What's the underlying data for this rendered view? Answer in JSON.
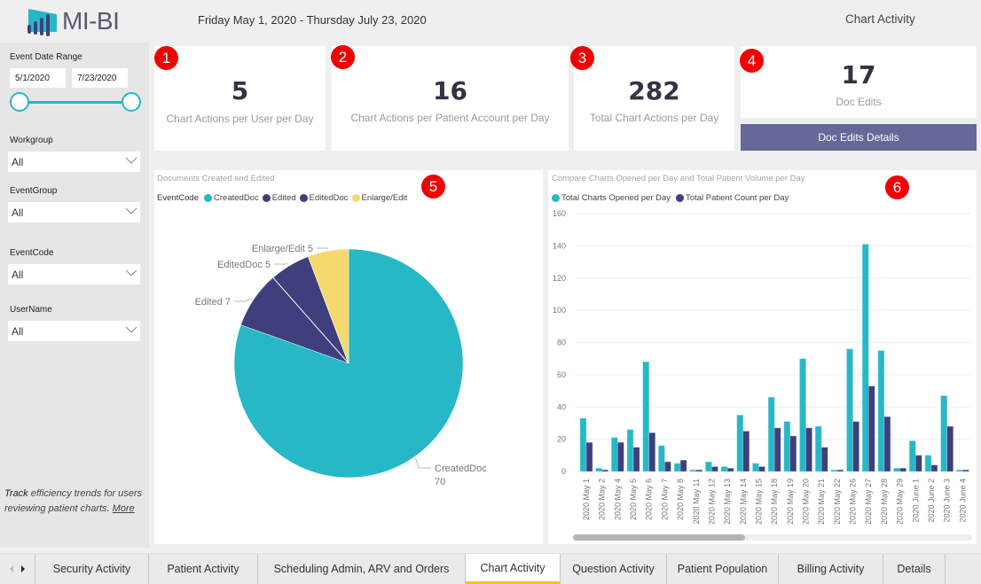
{
  "header": {
    "logo_text": "MI-BI",
    "date_range": "Friday May 1, 2020 - Thursday July 23, 2020",
    "page_name": "Chart Activity"
  },
  "sidebar": {
    "date_range_label": "Event Date Range",
    "start_date": "5/1/2020",
    "end_date": "7/23/2020",
    "filters": [
      {
        "label": "Workgroup",
        "value": "All"
      },
      {
        "label": "EventGroup",
        "value": "All"
      },
      {
        "label": "EventCode",
        "value": "All"
      },
      {
        "label": "UserName",
        "value": "All"
      }
    ],
    "description_lead": "Track",
    "description_rest": " efficiency trends for users reviewing patient charts. ",
    "more_link": "More"
  },
  "kpis": [
    {
      "badge": "1",
      "value": "5",
      "label": "Chart Actions per User per Day"
    },
    {
      "badge": "2",
      "value": "16",
      "label": "Chart Actions per Patient Account per Day"
    },
    {
      "badge": "3",
      "value": "282",
      "label": "Total Chart Actions per Day"
    },
    {
      "badge": "4",
      "value": "17",
      "label": "Doc Edits"
    }
  ],
  "doc_edits_button": "Doc Edits Details",
  "badges": {
    "pie": "5",
    "bar": "6"
  },
  "colors": {
    "teal": "#26b8c6",
    "navy": "#3e3f7c",
    "yellow": "#f5d86e",
    "button": "#666898",
    "badge": "#f00000"
  },
  "chart_data": [
    {
      "type": "pie",
      "title": "Documents Created and Edited",
      "legend_title": "EventCode",
      "legend_position": "top-left",
      "slices": [
        {
          "label": "CreatedDoc",
          "value": 70,
          "color": "#26b8c6"
        },
        {
          "label": "Edited",
          "value": 7,
          "color": "#3e3f7c"
        },
        {
          "label": "EditedDoc",
          "value": 5,
          "color": "#3e3f7c"
        },
        {
          "label": "Enlarge/Edit",
          "value": 5,
          "color": "#f5d86e"
        }
      ]
    },
    {
      "type": "bar",
      "title": "Compare Charts Opened per Day and Total Patient Volume per Day",
      "legend_position": "top-left",
      "ylim": [
        0,
        160
      ],
      "yticks": [
        0,
        20,
        40,
        60,
        80,
        100,
        120,
        140,
        160
      ],
      "grid": true,
      "categories": [
        "2020 May 1",
        "2020 May 2",
        "2020 May 4",
        "2020 May 5",
        "2020 May 6",
        "2020 May 7",
        "2020 May 8",
        "2020 May 11",
        "2020 May 12",
        "2020 May 13",
        "2020 May 14",
        "2020 May 15",
        "2020 May 18",
        "2020 May 19",
        "2020 May 20",
        "2020 May 21",
        "2020 May 22",
        "2020 May 26",
        "2020 May 27",
        "2020 May 28",
        "2020 May 29",
        "2020 June 1",
        "2020 June 2",
        "2020 June 3",
        "2020 June 4"
      ],
      "series": [
        {
          "name": "Total Charts Opened per Day",
          "color": "#26b8c6",
          "values": [
            33,
            2,
            21,
            26,
            68,
            16,
            5,
            1,
            6,
            3,
            35,
            5,
            46,
            31,
            70,
            28,
            1,
            76,
            141,
            75,
            2,
            19,
            10,
            47,
            1
          ]
        },
        {
          "name": "Total Patient Count per Day",
          "color": "#3e3f7c",
          "values": [
            18,
            1,
            18,
            15,
            24,
            6,
            7,
            1,
            3,
            2,
            25,
            3,
            27,
            22,
            27,
            15,
            1,
            31,
            53,
            34,
            2,
            10,
            4,
            28,
            1
          ]
        }
      ],
      "scroll_position": 0
    }
  ],
  "tabs": [
    {
      "label": "Security Activity",
      "active": false
    },
    {
      "label": "Patient Activity",
      "active": false
    },
    {
      "label": "Scheduling Admin, ARV and Orders",
      "active": false
    },
    {
      "label": "Chart Activity",
      "active": true
    },
    {
      "label": "Question Activity",
      "active": false
    },
    {
      "label": "Patient Population",
      "active": false
    },
    {
      "label": "Billing Activity",
      "active": false
    },
    {
      "label": "Details",
      "active": false
    }
  ]
}
